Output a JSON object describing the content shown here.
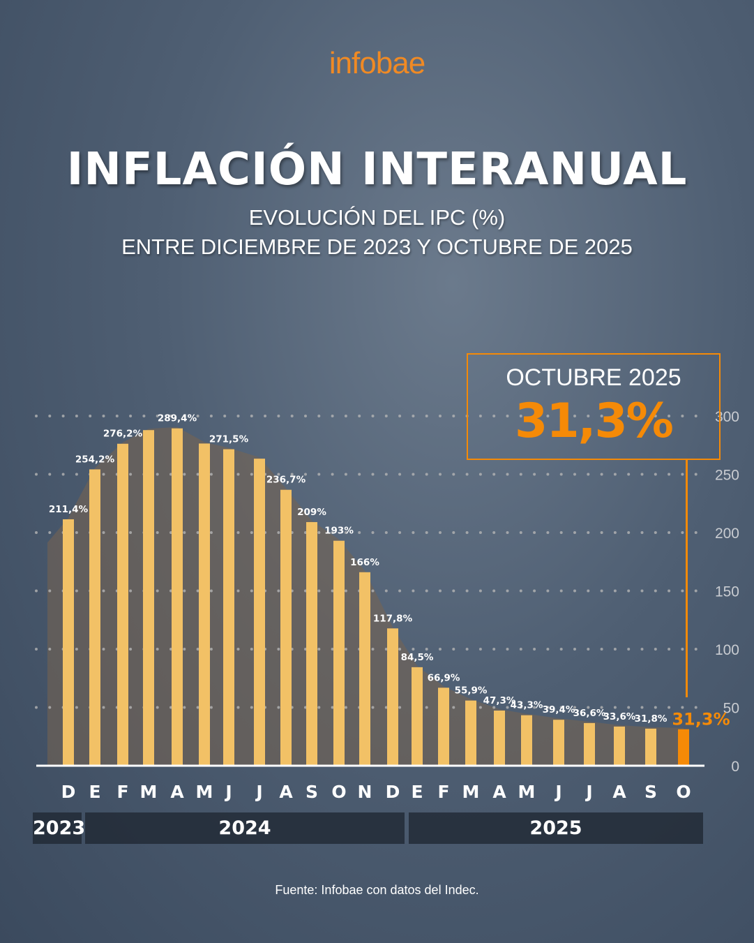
{
  "logo": "infobae",
  "title": "INFLACIÓN INTERANUAL",
  "subtitle_1": "EVOLUCIÓN DEL IPC (%)",
  "subtitle_2": "ENTRE DICIEMBRE DE 2023 Y OCTUBRE DE 2025",
  "callout": {
    "label": "OCTUBRE 2025",
    "value": "31,3%"
  },
  "source": "Fuente: Infobae con datos del Indec.",
  "colors": {
    "bar": "#f2c166",
    "highlight": "#f58a07",
    "background": "#4f5f73"
  },
  "chart_data": {
    "type": "bar",
    "title": "INFLACIÓN INTERANUAL",
    "ylim": [
      0,
      300
    ],
    "yticks": [
      "0",
      "50",
      "100",
      "150",
      "200",
      "250",
      "300"
    ],
    "grid": true,
    "categories": [
      "D",
      "E",
      "F",
      "M",
      "A",
      "M",
      "J",
      "J",
      "A",
      "S",
      "O",
      "N",
      "D",
      "E",
      "F",
      "M",
      "A",
      "M",
      "J",
      "J",
      "A",
      "S",
      "O"
    ],
    "years": [
      {
        "label": "2023",
        "span": 1
      },
      {
        "label": "2024",
        "span": 12
      },
      {
        "label": "2025",
        "span": 10
      }
    ],
    "values": [
      211.4,
      254.2,
      276.2,
      287.9,
      289.4,
      276.4,
      271.5,
      263.4,
      236.7,
      209,
      193,
      166,
      117.8,
      84.5,
      66.9,
      55.9,
      47.3,
      43.3,
      39.4,
      36.6,
      33.6,
      31.8,
      31.3
    ],
    "labels": [
      "211,4%",
      "254,2%",
      "276,2%",
      null,
      "289,4%",
      null,
      "271,5%",
      null,
      "236,7%",
      "209%",
      "193%",
      "166%",
      "117,8%",
      "84,5%",
      "66,9%",
      "55,9%",
      "47,3%",
      "43,3%",
      "39,4%",
      "36,6%",
      "33,6%",
      "31,8%",
      "31,3%"
    ],
    "highlight_index": 22
  }
}
